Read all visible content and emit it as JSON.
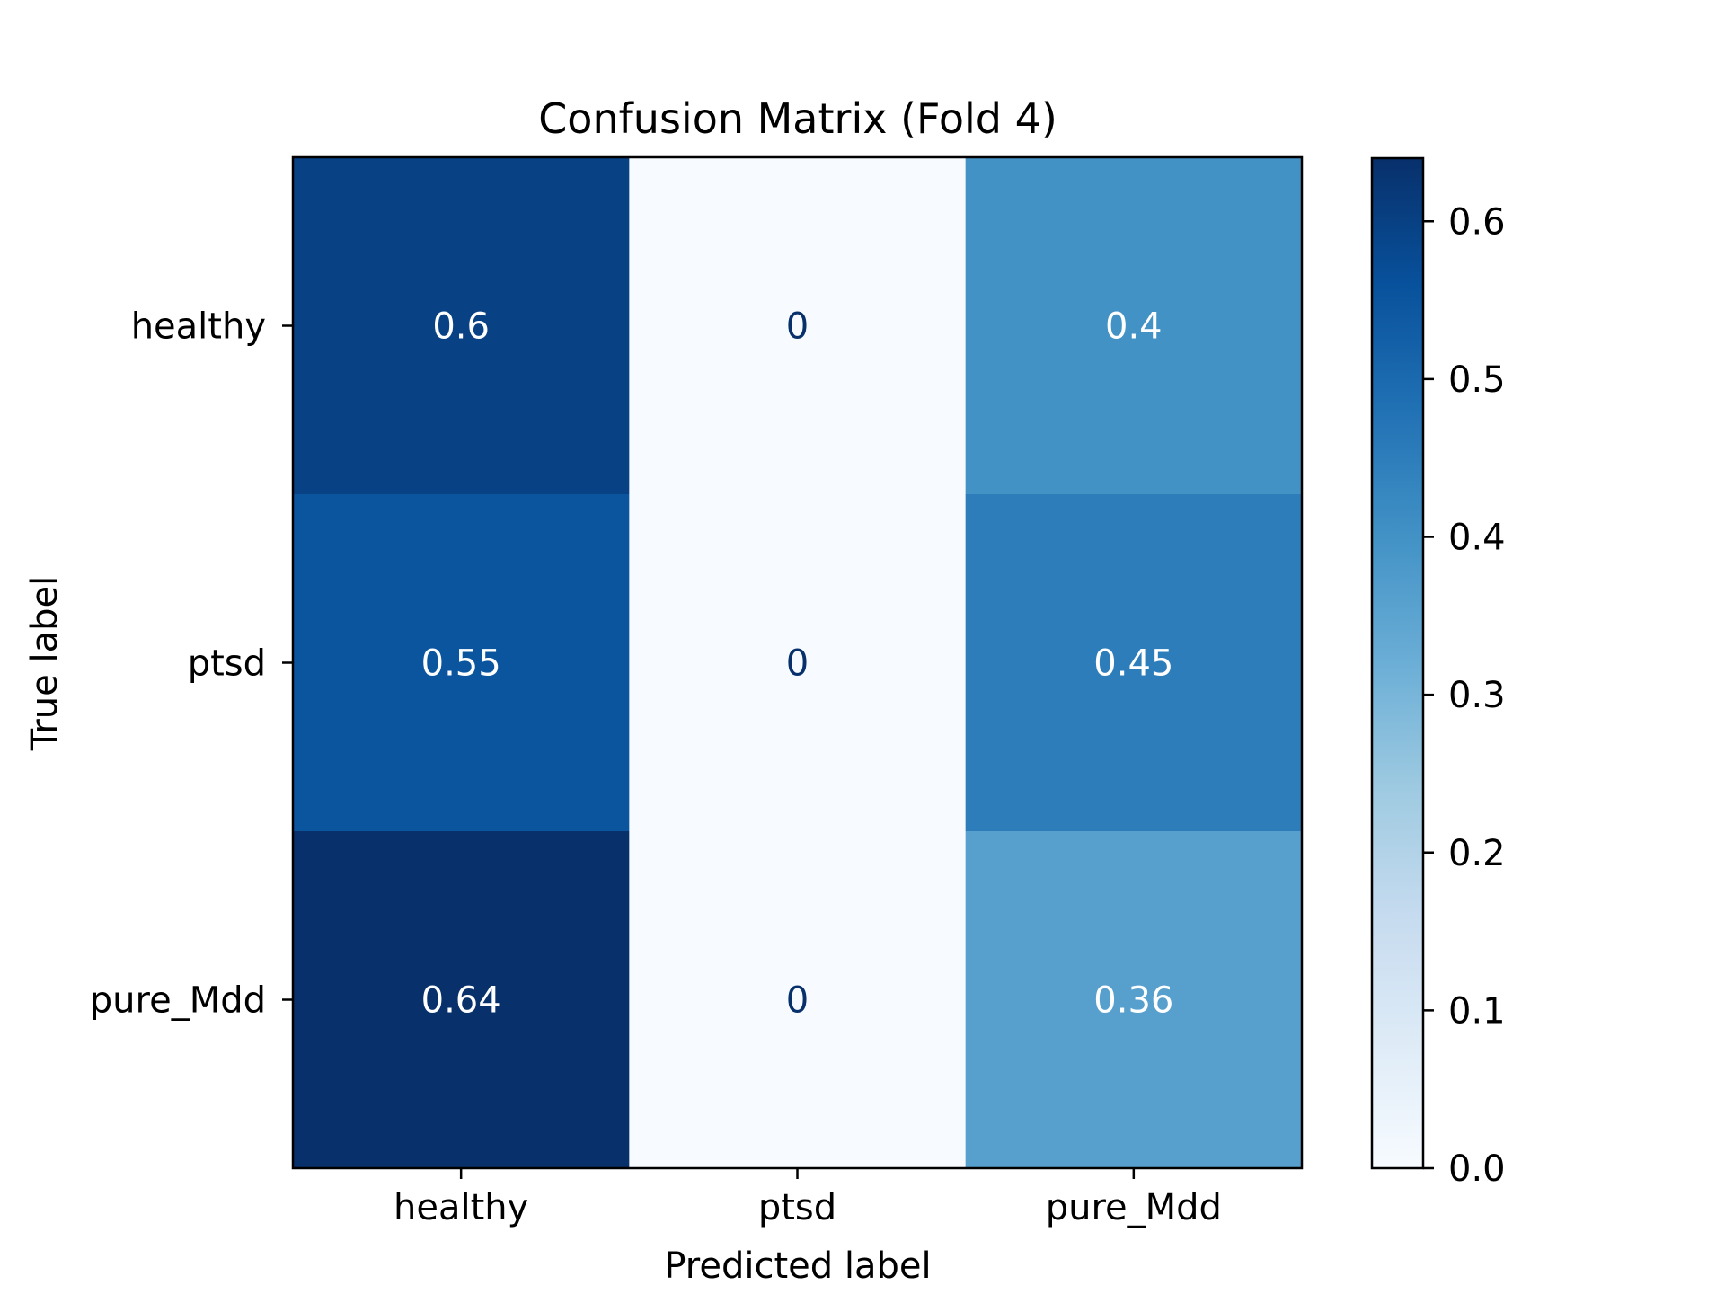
{
  "chart_data": {
    "type": "heatmap",
    "title": "Confusion Matrix (Fold 4)",
    "xlabel": "Predicted label",
    "ylabel": "True label",
    "x_categories": [
      "healthy",
      "ptsd",
      "pure_Mdd"
    ],
    "y_categories": [
      "healthy",
      "ptsd",
      "pure_Mdd"
    ],
    "values": [
      [
        0.6,
        0,
        0.4
      ],
      [
        0.55,
        0,
        0.45
      ],
      [
        0.64,
        0,
        0.36
      ]
    ],
    "value_labels": [
      [
        "0.6",
        "0",
        "0.4"
      ],
      [
        "0.55",
        "0",
        "0.45"
      ],
      [
        "0.64",
        "0",
        "0.36"
      ]
    ],
    "colormap": "Blues",
    "colorbar": {
      "min": 0.0,
      "max": 0.64,
      "ticks": [
        0.0,
        0.1,
        0.2,
        0.3,
        0.4,
        0.5,
        0.6
      ],
      "tick_labels": [
        "0.0",
        "0.1",
        "0.2",
        "0.3",
        "0.4",
        "0.5",
        "0.6"
      ]
    },
    "text_colors": {
      "on_light": "#08306b",
      "on_dark": "#ffffff"
    }
  }
}
